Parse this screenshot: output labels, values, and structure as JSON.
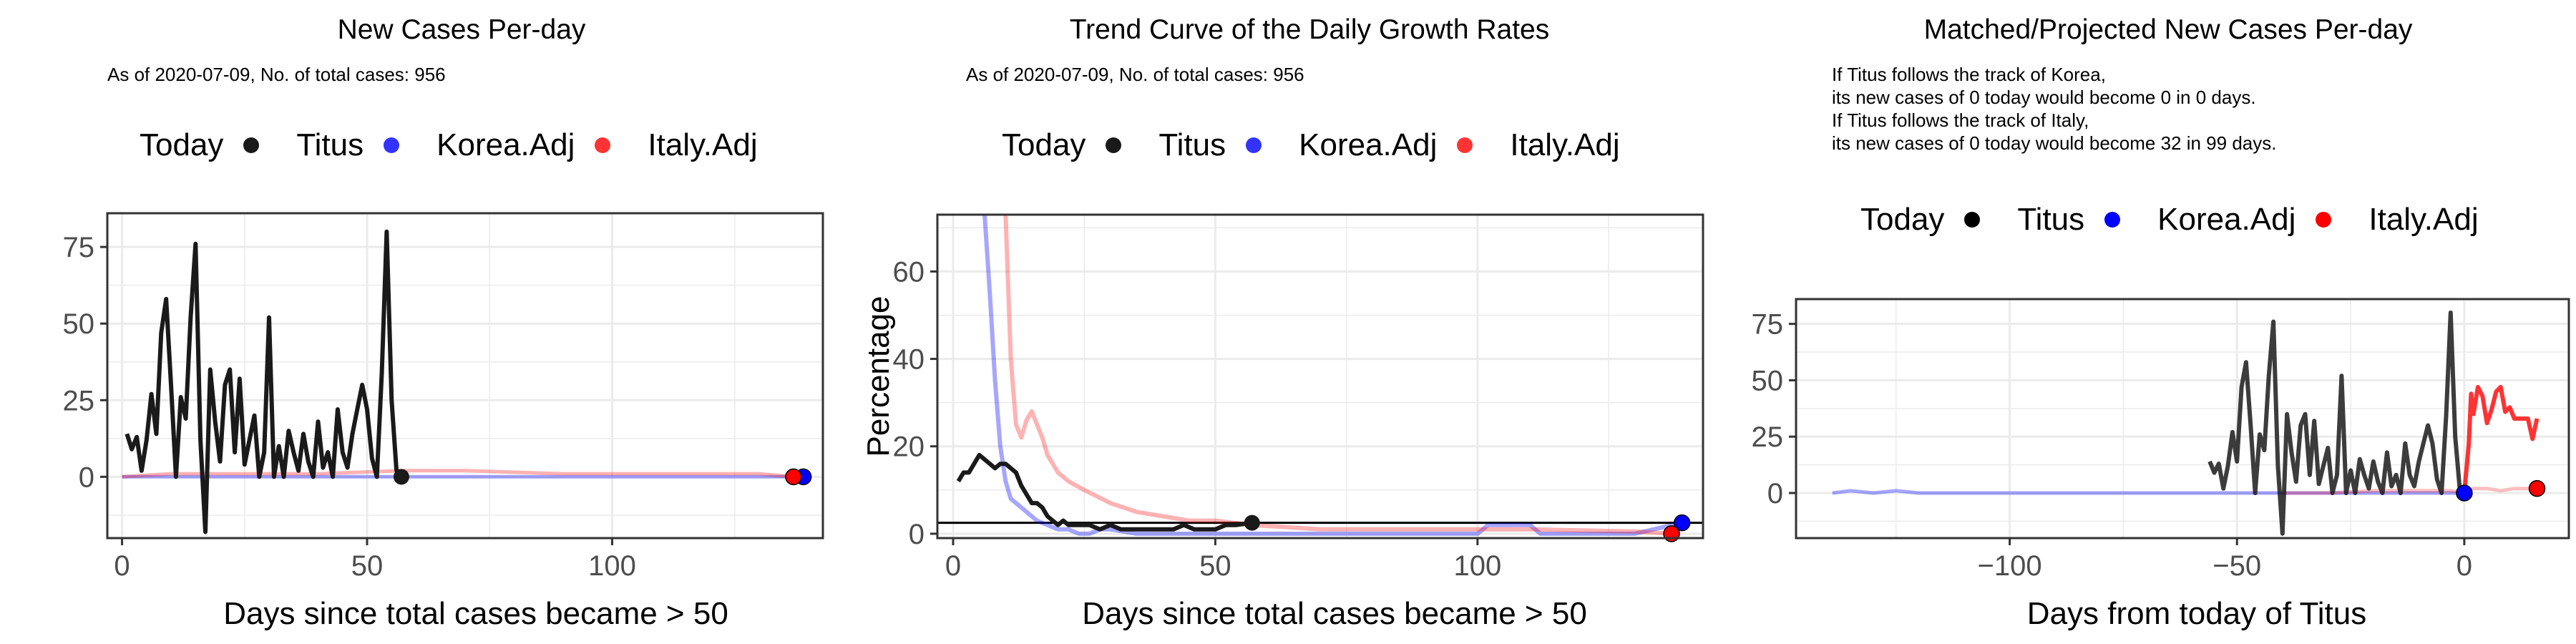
{
  "colors": {
    "titus": "#1a1a1a",
    "korea": "#0000ff",
    "italy": "#ff0000",
    "grid": "#ebebeb",
    "frame": "#333333"
  },
  "chart_data": [
    {
      "type": "line",
      "title": "New Cases Per-day",
      "subtitle": "As of 2020-07-09, No. of total cases: 956",
      "xlabel": "Days since total cases became > 50",
      "ylabel": "",
      "xlim": [
        -3,
        143
      ],
      "ylim": [
        -20,
        86
      ],
      "xticks": [
        0,
        50,
        100
      ],
      "yticks": [
        0,
        25,
        50,
        75
      ],
      "legend": {
        "title": "Today",
        "entries": [
          "Titus",
          "Korea.Adj",
          "Italy.Adj"
        ],
        "position": "top"
      },
      "series": [
        {
          "name": "Titus",
          "x": [
            1,
            2,
            3,
            4,
            5,
            6,
            7,
            8,
            9,
            10,
            11,
            12,
            13,
            14,
            15,
            16,
            17,
            18,
            19,
            20,
            21,
            22,
            23,
            24,
            25,
            26,
            27,
            28,
            29,
            30,
            31,
            32,
            33,
            34,
            35,
            36,
            37,
            38,
            39,
            40,
            41,
            42,
            43,
            44,
            45,
            46,
            47,
            48,
            49,
            50,
            51,
            52,
            53,
            54,
            55,
            56,
            57
          ],
          "y": [
            14,
            9,
            13,
            2,
            12,
            27,
            14,
            47,
            58,
            30,
            0,
            26,
            19,
            52,
            76,
            12,
            -18,
            35,
            18,
            5,
            30,
            35,
            8,
            32,
            4,
            12,
            20,
            0,
            8,
            52,
            0,
            10,
            0,
            15,
            8,
            2,
            14,
            5,
            0,
            18,
            3,
            8,
            0,
            22,
            8,
            3,
            14,
            22,
            30,
            22,
            6,
            0,
            34,
            80,
            25,
            2,
            0
          ]
        },
        {
          "name": "Korea.Adj",
          "x": [
            0,
            10,
            20,
            30,
            40,
            50,
            57,
            70,
            90,
            110,
            130,
            139
          ],
          "y": [
            0,
            0,
            0,
            0,
            0,
            0,
            0,
            0,
            0,
            0,
            0,
            0
          ]
        },
        {
          "name": "Italy.Adj",
          "x": [
            0,
            10,
            20,
            40,
            57,
            70,
            90,
            110,
            130,
            137
          ],
          "y": [
            0,
            1,
            1,
            1,
            2,
            2,
            1,
            1,
            1,
            0
          ]
        }
      ],
      "today_points": {
        "Titus": [
          57,
          0
        ],
        "Korea.Adj": [
          139,
          0
        ],
        "Italy.Adj": [
          137,
          0
        ]
      }
    },
    {
      "type": "line",
      "title": "Trend Curve of the Daily Growth Rates",
      "subtitle": "As of 2020-07-09, No. of total cases: 956",
      "xlabel": "Days since total cases became > 50",
      "ylabel": "Percentage",
      "xlim": [
        -3,
        143
      ],
      "ylim": [
        -1,
        73
      ],
      "xticks": [
        0,
        50,
        100
      ],
      "yticks": [
        0,
        20,
        40,
        60
      ],
      "hline": 2.5,
      "legend": {
        "title": "Today",
        "entries": [
          "Titus",
          "Korea.Adj",
          "Italy.Adj"
        ],
        "position": "top"
      },
      "series": [
        {
          "name": "Titus",
          "x": [
            1,
            2,
            3,
            4,
            5,
            6,
            7,
            8,
            9,
            10,
            11,
            12,
            13,
            14,
            15,
            16,
            17,
            18,
            19,
            20,
            21,
            22,
            24,
            26,
            28,
            30,
            32,
            34,
            36,
            38,
            40,
            42,
            44,
            46,
            48,
            50,
            52,
            54,
            57
          ],
          "y": [
            12,
            14,
            14,
            16,
            18,
            17,
            16,
            15,
            16,
            16,
            15,
            14,
            11,
            9,
            7,
            7,
            6,
            4,
            3,
            2,
            3,
            2,
            2,
            2,
            1,
            2,
            1,
            1,
            1,
            1,
            1,
            1,
            2,
            1,
            1,
            1,
            2,
            2,
            2.5
          ]
        },
        {
          "name": "Korea.Adj",
          "x": [
            6,
            7,
            8,
            9,
            10,
            11,
            12,
            14,
            16,
            18,
            20,
            22,
            24,
            26,
            28,
            30,
            35,
            40,
            45,
            57,
            80,
            100,
            102,
            110,
            112,
            130,
            139
          ],
          "y": [
            73,
            55,
            35,
            20,
            12,
            8,
            7,
            5,
            3,
            2,
            1,
            1,
            0,
            0,
            1,
            1,
            0,
            0,
            0,
            0,
            0,
            0,
            2,
            2,
            0,
            0,
            2.5
          ]
        },
        {
          "name": "Italy.Adj",
          "x": [
            10,
            11,
            12,
            13,
            14,
            15,
            16,
            17,
            18,
            20,
            22,
            25,
            30,
            35,
            40,
            45,
            50,
            57,
            70,
            90,
            110,
            130,
            137
          ],
          "y": [
            73,
            40,
            25,
            22,
            26,
            28,
            25,
            22,
            18,
            14,
            12,
            10,
            7,
            5,
            4,
            3,
            3,
            2,
            1,
            1,
            1,
            0.5,
            0
          ]
        }
      ],
      "today_points": {
        "Titus": [
          57,
          2.5
        ],
        "Korea.Adj": [
          139,
          2.5
        ],
        "Italy.Adj": [
          137,
          0
        ]
      }
    },
    {
      "type": "line",
      "title": "Matched/Projected New Cases Per-day",
      "subtitle": "If Titus follows the track of Korea,\nits new cases of 0 today would become 0 in 0 days.\nIf Titus follows the track of Italy,\nits new cases of 0 today would become 32 in 99 days.",
      "xlabel": "Days from today of Titus",
      "ylabel": "",
      "xlim": [
        -147,
        23
      ],
      "ylim": [
        -20,
        86
      ],
      "xticks": [
        -100,
        -50,
        0
      ],
      "yticks": [
        0,
        25,
        50,
        75
      ],
      "legend": {
        "title": "Today",
        "entries": [
          "Titus",
          "Korea.Adj",
          "Italy.Adj"
        ],
        "position": "top"
      },
      "series": [
        {
          "name": "Titus",
          "x": [
            -56,
            -55,
            -54,
            -53,
            -52,
            -51,
            -50,
            -49,
            -48,
            -47,
            -46,
            -45,
            -44,
            -43,
            -42,
            -41,
            -40,
            -39,
            -38,
            -37,
            -36,
            -35,
            -34,
            -33,
            -32,
            -31,
            -30,
            -29,
            -28,
            -27,
            -26,
            -25,
            -24,
            -23,
            -22,
            -21,
            -20,
            -19,
            -18,
            -17,
            -16,
            -15,
            -14,
            -13,
            -12,
            -11,
            -10,
            -9,
            -8,
            -7,
            -6,
            -5,
            -4,
            -3,
            -2,
            -1,
            0
          ],
          "y": [
            14,
            9,
            13,
            2,
            12,
            27,
            14,
            47,
            58,
            30,
            0,
            26,
            19,
            52,
            76,
            12,
            -18,
            35,
            18,
            5,
            30,
            35,
            8,
            32,
            4,
            12,
            20,
            0,
            8,
            52,
            0,
            10,
            0,
            15,
            8,
            2,
            14,
            5,
            0,
            18,
            3,
            8,
            0,
            22,
            8,
            3,
            14,
            22,
            30,
            22,
            6,
            0,
            34,
            80,
            25,
            2,
            0
          ]
        },
        {
          "name": "Korea.Adj",
          "x": [
            -139,
            -135,
            -130,
            -125,
            -120,
            -110,
            -100,
            -90,
            -80,
            -70,
            -60,
            -50,
            -40,
            -30,
            -20,
            -10,
            0
          ],
          "y": [
            0,
            1,
            0,
            1,
            0,
            0,
            0,
            0,
            0,
            0,
            0,
            0,
            0,
            0,
            0,
            0,
            0
          ]
        },
        {
          "name": "Italy.Adj",
          "x": [
            -40,
            -30,
            -20,
            -10,
            -3,
            0,
            2,
            5,
            8,
            11,
            14,
            16
          ],
          "y": [
            0,
            0,
            1,
            1,
            1,
            0,
            2,
            2,
            1,
            2,
            2,
            1
          ]
        },
        {
          "name": "Italy.Adj",
          "projected": true,
          "x": [
            0,
            1,
            1.5,
            2,
            3,
            4,
            5,
            6,
            7,
            8,
            9,
            10,
            11,
            12,
            13,
            14,
            15,
            16
          ],
          "y": [
            0,
            22,
            44,
            35,
            47,
            43,
            31,
            37,
            45,
            47,
            36,
            38,
            33,
            33,
            33,
            33,
            24,
            33
          ]
        }
      ],
      "today_points": {
        "Titus": [
          0,
          0
        ],
        "Korea.Adj": [
          0,
          0
        ],
        "Italy.Adj": [
          16,
          2
        ]
      }
    }
  ]
}
